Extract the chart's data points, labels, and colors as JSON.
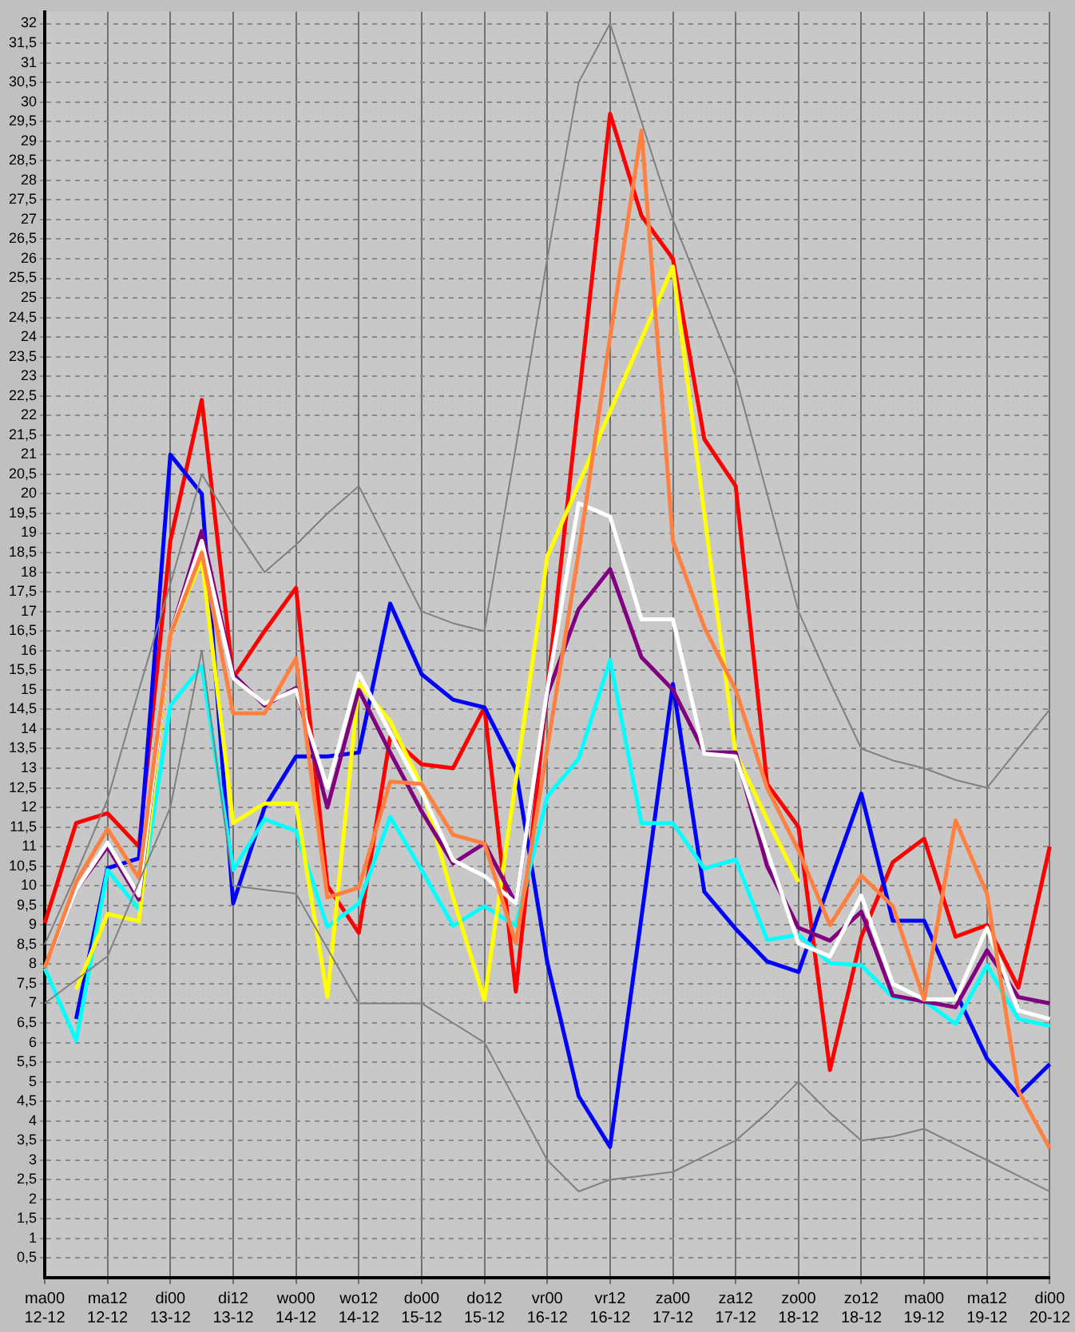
{
  "chart_data": {
    "type": "line",
    "marker": "none",
    "grid": true,
    "legend": false,
    "categories": [
      "ma00\n12-12",
      null,
      "ma12\n12-12",
      null,
      "di00\n13-12",
      null,
      "di12\n13-12",
      null,
      "wo00\n14-12",
      null,
      "wo12\n14-12",
      null,
      "do00\n15-12",
      null,
      "do12\n15-12",
      null,
      "vr00\n16-12",
      null,
      "vr12\n16-12",
      null,
      "za00\n17-12",
      null,
      "za12\n17-12",
      null,
      "zo00\n18-12",
      null,
      "zo12\n18-12",
      null,
      "ma00\n19-12",
      null,
      "ma12\n19-12",
      null,
      "di00\n20-12"
    ],
    "ylim": [
      0,
      32.3
    ],
    "yticks": [
      {
        "value": 0.5,
        "label": "0,5"
      },
      1,
      {
        "value": 1.5,
        "label": "1,5"
      },
      2,
      {
        "value": 2.5,
        "label": "2,5"
      },
      3,
      {
        "value": 3.5,
        "label": "3,5"
      },
      4,
      {
        "value": 4.5,
        "label": "4,5"
      },
      5,
      {
        "value": 5.5,
        "label": "5,5"
      },
      6,
      {
        "value": 6.5,
        "label": "6,5"
      },
      7,
      {
        "value": 7.5,
        "label": "7,5"
      },
      8,
      {
        "value": 8.5,
        "label": "8,5"
      },
      9,
      {
        "value": 9.5,
        "label": "9,5"
      },
      10,
      {
        "value": 10.5,
        "label": "10,5"
      },
      11,
      {
        "value": 11.5,
        "label": "11,5"
      },
      12,
      {
        "value": 12.5,
        "label": "12,5"
      },
      13,
      {
        "value": 13.5,
        "label": "13,5"
      },
      14,
      {
        "value": 14.5,
        "label": "14,5"
      },
      15,
      {
        "value": 15.5,
        "label": "15,5"
      },
      16,
      {
        "value": 16.5,
        "label": "16,5"
      },
      17,
      {
        "value": 17.5,
        "label": "17,5"
      },
      18,
      {
        "value": 18.5,
        "label": "18,5"
      },
      19,
      {
        "value": 19.5,
        "label": "19,5"
      },
      20,
      {
        "value": 20.5,
        "label": "20,5"
      },
      21,
      {
        "value": 21.5,
        "label": "21,5"
      },
      22,
      {
        "value": 22.5,
        "label": "22,5"
      },
      23,
      {
        "value": 23.5,
        "label": "23,5"
      },
      24,
      {
        "value": 24.5,
        "label": "24,5"
      },
      25,
      {
        "value": 25.5,
        "label": "25,5"
      },
      26,
      {
        "value": 26.5,
        "label": "26,5"
      },
      27,
      {
        "value": 27.5,
        "label": "27,5"
      },
      28,
      {
        "value": 28.5,
        "label": "28,5"
      },
      29,
      {
        "value": 29.5,
        "label": "29,5"
      },
      30,
      {
        "value": 30.5,
        "label": "30,5"
      },
      31,
      {
        "value": 31.5,
        "label": "31,5"
      },
      32
    ],
    "series": [
      {
        "color": "#808080",
        "values": [
          8.5,
          10.3,
          12.2,
          15,
          17.7,
          20.5,
          19.2,
          18,
          18.7,
          19.5,
          20.2,
          18.6,
          17,
          16.7,
          16.5,
          21.2,
          26,
          30.5,
          32,
          29.5,
          27,
          25,
          23,
          20,
          17,
          15.2,
          13.5,
          13.2,
          13,
          12.7,
          12.5,
          13.5,
          14.5
        ]
      },
      {
        "color": "#808080",
        "values": [
          7,
          7.6,
          8.2,
          10.1,
          12,
          16,
          10,
          9.9,
          9.8,
          8.4,
          7,
          7,
          7,
          6.5,
          6,
          4.5,
          3,
          2.2,
          2.5,
          2.6,
          2.7,
          3.1,
          3.5,
          4.2,
          5,
          4.2,
          3.5,
          3.6,
          3.8,
          3.4,
          3,
          2.6,
          2.2
        ]
      },
      {
        "color": "#ff8040",
        "values": [
          7.9,
          10.1,
          11.45,
          10.2,
          16.4,
          18.5,
          14.4,
          14.4,
          15.8,
          9.7,
          9.95,
          12.66,
          12.6,
          11.3,
          11.08,
          8.53,
          13.5,
          18.5,
          24,
          29.27,
          18.8,
          16.6,
          15,
          12.5,
          10.9,
          9,
          10.26,
          9.48,
          7.09,
          11.67,
          9.8,
          4.77,
          3.3
        ]
      },
      {
        "color": "#ffffff",
        "values": [
          7.9,
          9.9,
          11.1,
          9.75,
          16.4,
          18.8,
          15.3,
          14.65,
          15,
          12.5,
          15.42,
          13.9,
          12.4,
          10.65,
          10.25,
          9.55,
          15,
          19.76,
          19.42,
          16.8,
          16.8,
          13.37,
          13.3,
          10.9,
          8.53,
          8.2,
          9.75,
          7.5,
          7.1,
          7.1,
          8.93,
          6.82,
          6.6
        ]
      },
      {
        "color": "#800080",
        "values": [
          7.9,
          9.9,
          11,
          9.65,
          16.4,
          19.05,
          15.4,
          14.6,
          15.05,
          12,
          15,
          13.4,
          11.9,
          10.57,
          11.08,
          9.55,
          14.87,
          17.06,
          18.08,
          15.83,
          15,
          13.4,
          13.4,
          10.5,
          8.93,
          8.6,
          9.34,
          7.2,
          7.05,
          6.9,
          8.35,
          7.16,
          7
        ]
      },
      {
        "color": "#ffff00",
        "values": [
          null,
          7.36,
          9.28,
          9.1,
          16.4,
          18.35,
          11.6,
          12.1,
          12.1,
          7.16,
          15.17,
          14.2,
          12.55,
          9.69,
          7.09,
          12.7,
          18.4,
          20.25,
          22.1,
          23.95,
          25.8,
          19.5,
          13.37,
          11.7,
          10.1,
          null,
          null,
          null,
          null,
          null,
          null,
          null,
          null
        ]
      },
      {
        "color": "#00ffff",
        "values": [
          7.9,
          6.05,
          10.4,
          9.4,
          14.6,
          15.6,
          10.4,
          11.7,
          11.4,
          8.95,
          9.55,
          11.76,
          10.4,
          8.98,
          9.48,
          8.98,
          12.28,
          13.24,
          15.76,
          11.6,
          11.6,
          10.44,
          10.67,
          8.62,
          8.75,
          8.03,
          7.97,
          7.16,
          7.06,
          6.48,
          7.97,
          6.6,
          6.42
        ]
      },
      {
        "color": "#0000ff",
        "values": [
          null,
          6.6,
          10.45,
          10.7,
          21,
          20,
          9.55,
          12,
          13.3,
          13.3,
          13.4,
          17.2,
          15.4,
          14.75,
          14.55,
          12.96,
          8.05,
          4.63,
          3.34,
          9.2,
          15.15,
          9.85,
          8.9,
          8.07,
          7.8,
          10.1,
          12.35,
          9.11,
          9.11,
          7.3,
          5.59,
          4.66,
          5.45
        ]
      },
      {
        "color": "#ff0000",
        "values": [
          9.05,
          11.6,
          11.85,
          11,
          18.8,
          22.4,
          15.3,
          16.5,
          17.6,
          10,
          8.8,
          13.8,
          13.1,
          13,
          14.55,
          7.3,
          15,
          22.4,
          29.7,
          27.1,
          26,
          21.4,
          20.2,
          12.6,
          11.5,
          5.3,
          8.7,
          10.6,
          11.2,
          8.7,
          9,
          7.4,
          11
        ]
      }
    ]
  }
}
